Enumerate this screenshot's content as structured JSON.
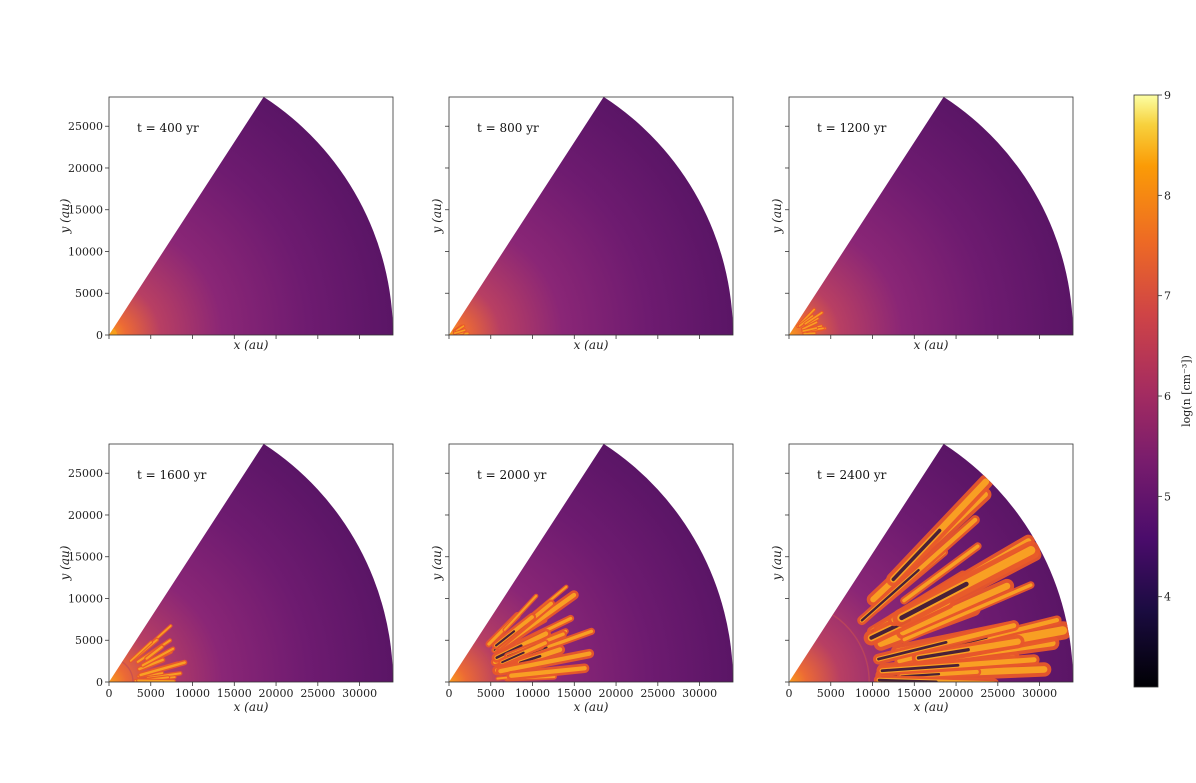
{
  "chart_data": {
    "type": "heatmap",
    "quantity_label": "log(n [cm⁻³])",
    "colorbar": {
      "min": 3.1,
      "max": 9.0,
      "ticks": [
        4,
        5,
        6,
        7,
        8,
        9
      ],
      "colormap": "inferno"
    },
    "x_axis": {
      "label": "x (au)",
      "lim": [
        0,
        34000
      ],
      "ticks": [
        0,
        5000,
        10000,
        15000,
        20000,
        25000,
        30000
      ]
    },
    "y_axis": {
      "label": "y (au)",
      "lim": [
        0,
        28500
      ],
      "ticks": [
        0,
        5000,
        10000,
        15000,
        20000,
        25000
      ]
    },
    "domain": {
      "outer_radius_au": 34000,
      "opening_angle_deg": 57
    },
    "panels": [
      {
        "time_label": "t = 400 yr",
        "shell_radius_au": 800,
        "fingers": 0,
        "show_xticks": false,
        "show_yticks": true
      },
      {
        "time_label": "t = 800 yr",
        "shell_radius_au": 2000,
        "fingers": 6,
        "show_xticks": false,
        "show_yticks": false
      },
      {
        "time_label": "t = 1200 yr",
        "shell_radius_au": 4200,
        "fingers": 10,
        "show_xticks": false,
        "show_yticks": false
      },
      {
        "time_label": "t = 1600 yr",
        "shell_radius_au": 9000,
        "fingers": 16,
        "show_xticks": true,
        "show_yticks": true
      },
      {
        "time_label": "t = 2000 yr",
        "shell_radius_au": 16500,
        "fingers": 22,
        "show_xticks": true,
        "show_yticks": false
      },
      {
        "time_label": "t = 2400 yr",
        "shell_radius_au": 30000,
        "fingers": 30,
        "show_xticks": true,
        "show_yticks": false
      }
    ]
  }
}
